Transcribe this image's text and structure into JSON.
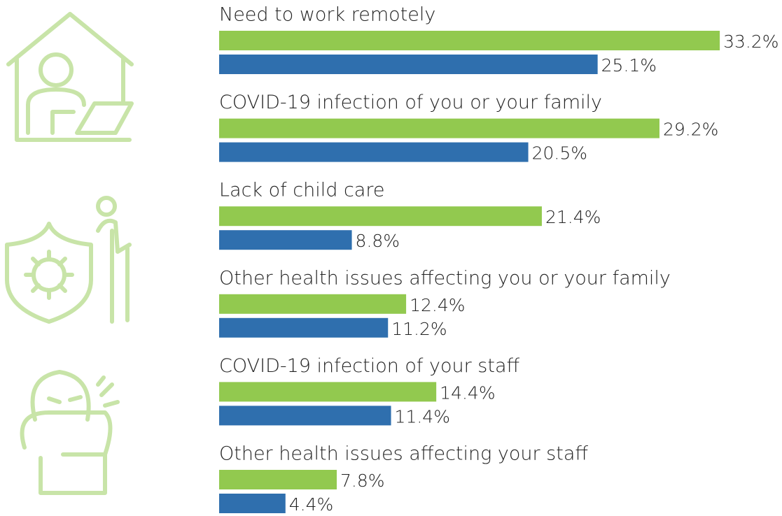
{
  "chart_data": {
    "type": "bar",
    "categories": [
      "Need to work remotely",
      "COVID-19 infection of you or your family",
      "Lack of child care",
      "Other health issues affecting you or your family",
      "COVID-19 infection of your staff",
      "Other health issues affecting your staff"
    ],
    "series": [
      {
        "color": "#92c94f",
        "values": [
          33.2,
          29.2,
          21.4,
          12.4,
          14.4,
          7.8
        ],
        "value_labels": [
          "33.2%",
          "29.2%",
          "21.4%",
          "12.4%",
          "14.4%",
          "7.8%"
        ]
      },
      {
        "color": "#2f6fae",
        "values": [
          25.1,
          20.5,
          8.8,
          11.2,
          11.4,
          4.4
        ],
        "value_labels": [
          "25.1%",
          "20.5%",
          "8.8%",
          "11.2%",
          "11.4%",
          "4.4%"
        ]
      }
    ]
  }
}
